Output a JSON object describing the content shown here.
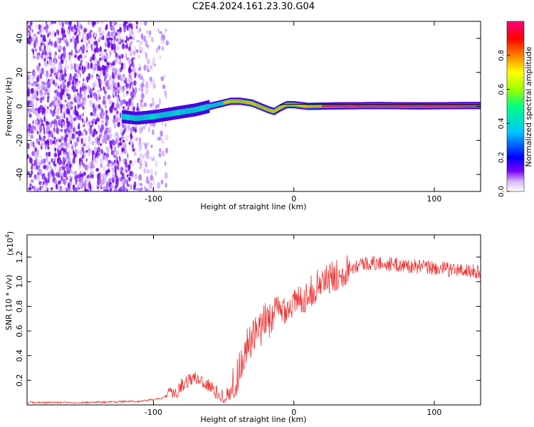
{
  "title": "C2E4.2024.161.23.30.G04",
  "chart_data": [
    {
      "type": "heatmap",
      "xlabel": "Height of straight line (km)",
      "ylabel": "Frequency (Hz)",
      "xlim": [
        -190,
        133
      ],
      "ylim": [
        -50,
        50
      ],
      "xticks": [
        -100,
        0,
        100
      ],
      "yticks": [
        40,
        20,
        0,
        -20,
        -40
      ],
      "noise_region_x": [
        -190,
        -90
      ],
      "ridge": {
        "x": [
          -122,
          -112,
          -100,
          -85,
          -70,
          -55,
          -45,
          -38,
          -30,
          -24,
          -18,
          -14,
          -10,
          -5,
          0,
          10,
          30,
          60,
          90,
          120,
          133
        ],
        "y": [
          -6,
          -7,
          -6,
          -4,
          -2,
          1,
          3,
          3,
          2,
          0,
          -2,
          -3,
          -1,
          1,
          1,
          0,
          0.3,
          0.5,
          0.3,
          0.5,
          0.5
        ]
      },
      "colorbar": {
        "label": "Normalized spectral amplitude",
        "range": [
          0.0,
          1.0
        ],
        "ticks": [
          "0.0",
          "0.2",
          "0.4",
          "0.6",
          "0.8"
        ],
        "colors": [
          "#ffffff",
          "#d8b4ff",
          "#7a00ff",
          "#0000ff",
          "#00c8ff",
          "#00ff80",
          "#9bff00",
          "#ffff00",
          "#ff8000",
          "#ff0000",
          "#ff0080"
        ]
      }
    },
    {
      "type": "line",
      "xlabel": "Height of straight line (km)",
      "ylabel": "SNR (10 * v/v)",
      "scale_label": "(x10",
      "scale_exp": "4",
      "xlim": [
        -190,
        133
      ],
      "ylim": [
        0,
        1.38
      ],
      "xticks": [
        -100,
        0,
        100
      ],
      "yticks": [
        0.2,
        0.4,
        0.6,
        0.8,
        1.0,
        1.2
      ],
      "series": [
        {
          "color": "#ee3333",
          "x": [
            -190,
            -150,
            -110,
            -95,
            -85,
            -78,
            -72,
            -66,
            -60,
            -55,
            -50,
            -45,
            -40,
            -36,
            -32,
            -28,
            -24,
            -20,
            -16,
            -12,
            -8,
            -4,
            0,
            5,
            10,
            15,
            20,
            30,
            40,
            50,
            60,
            70,
            80,
            90,
            100,
            110,
            120,
            133
          ],
          "y": [
            0.02,
            0.02,
            0.03,
            0.05,
            0.1,
            0.18,
            0.22,
            0.2,
            0.15,
            0.1,
            0.07,
            0.1,
            0.25,
            0.4,
            0.5,
            0.55,
            0.6,
            0.68,
            0.72,
            0.75,
            0.78,
            0.8,
            0.82,
            0.85,
            0.9,
            0.95,
            1.0,
            1.05,
            1.12,
            1.15,
            1.15,
            1.14,
            1.13,
            1.12,
            1.11,
            1.1,
            1.09,
            1.08
          ]
        }
      ]
    }
  ]
}
